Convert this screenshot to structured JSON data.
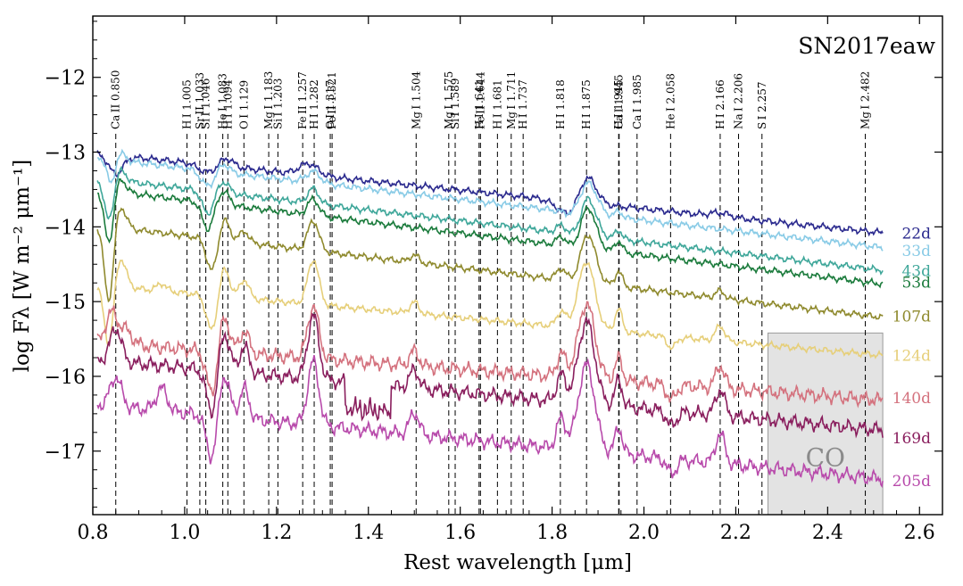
{
  "chart_data": {
    "type": "line",
    "title": "SN2017eaw",
    "xlabel": "Rest wavelength [μm]",
    "ylabel": "log Fλ [W m⁻² μm⁻¹]",
    "xlim": [
      0.8,
      2.65
    ],
    "ylim": [
      -17.85,
      -11.18
    ],
    "xticks": [
      0.8,
      1.0,
      1.2,
      1.4,
      1.6,
      1.8,
      2.0,
      2.2,
      2.4,
      2.6
    ],
    "xtick_labels": [
      "0.8",
      "1.0",
      "1.2",
      "1.4",
      "1.6",
      "1.8",
      "2.0",
      "2.2",
      "2.4",
      "2.6"
    ],
    "yticks": [
      -12,
      -13,
      -14,
      -15,
      -16,
      -17
    ],
    "ytick_labels": [
      "−12",
      "−13",
      "−14",
      "−15",
      "−16",
      "−17"
    ],
    "shaded_region": {
      "label": "CO",
      "x0": 2.27,
      "x1": 2.52,
      "y0": -17.85,
      "y1": -15.42,
      "color": "#e3e3e3"
    },
    "line_ids": [
      {
        "label": "Ca II 0.850",
        "x": 0.85
      },
      {
        "label": "H I 1.005",
        "x": 1.005
      },
      {
        "label": "Sr II 1.033",
        "x": 1.033
      },
      {
        "label": "Si I 1.046",
        "x": 1.046
      },
      {
        "label": "He I 1.083",
        "x": 1.083
      },
      {
        "label": "H I 1.094",
        "x": 1.094
      },
      {
        "label": "O I 1.129",
        "x": 1.129
      },
      {
        "label": "Mg I 1.183",
        "x": 1.183
      },
      {
        "label": "Si I 1.203",
        "x": 1.203
      },
      {
        "label": "Fe II 1.257",
        "x": 1.257
      },
      {
        "label": "H I 1.282",
        "x": 1.282
      },
      {
        "label": "O I 1.317",
        "x": 1.317
      },
      {
        "label": "Fe II 1.321",
        "x": 1.321
      },
      {
        "label": "Mg I 1.504",
        "x": 1.504
      },
      {
        "label": "Mg I 1.575",
        "x": 1.575
      },
      {
        "label": "Si I 1.589",
        "x": 1.589
      },
      {
        "label": "H I 1.641",
        "x": 1.641
      },
      {
        "label": "Fe II 1.644",
        "x": 1.644
      },
      {
        "label": "H I 1.681",
        "x": 1.681
      },
      {
        "label": "Mg I 1.711",
        "x": 1.711
      },
      {
        "label": "H I 1.737",
        "x": 1.737
      },
      {
        "label": "H I 1.818",
        "x": 1.818
      },
      {
        "label": "H I 1.875",
        "x": 1.875
      },
      {
        "label": "H I 1.945",
        "x": 1.945
      },
      {
        "label": "Ca I 1.945",
        "x": 1.946
      },
      {
        "label": "Ca I 1.985",
        "x": 1.985
      },
      {
        "label": "He I 2.058",
        "x": 2.058
      },
      {
        "label": "H I 2.166",
        "x": 2.166
      },
      {
        "label": "Na I 2.206",
        "x": 2.206
      },
      {
        "label": "S I 2.257",
        "x": 2.257
      },
      {
        "label": "Mg I 2.482",
        "x": 2.482
      }
    ],
    "series": [
      {
        "name": "22d",
        "color": "#2b2a8e",
        "base": -13.02,
        "slope": -0.62,
        "x_start": 0.81,
        "x_end": 2.52,
        "features": [
          [
            0.85,
            -0.25,
            0.015
          ],
          [
            1.05,
            -0.1,
            0.02
          ],
          [
            1.09,
            0.12,
            0.015
          ],
          [
            1.27,
            0.15,
            0.02
          ],
          [
            1.85,
            -0.25,
            0.03
          ],
          [
            1.875,
            0.5,
            0.02
          ],
          [
            2.166,
            0.05,
            0.02
          ]
        ]
      },
      {
        "name": "33d",
        "color": "#89cbe6",
        "base": -13.08,
        "slope": -0.7,
        "x_start": 0.81,
        "x_end": 2.52,
        "features": [
          [
            0.84,
            -0.35,
            0.008
          ],
          [
            0.86,
            0.1,
            0.012
          ],
          [
            1.05,
            -0.2,
            0.015
          ],
          [
            1.085,
            0.12,
            0.012
          ],
          [
            1.28,
            0.15,
            0.015
          ],
          [
            1.86,
            -0.2,
            0.02
          ],
          [
            1.875,
            0.55,
            0.02
          ],
          [
            1.945,
            0.08,
            0.008
          ]
        ]
      },
      {
        "name": "43d",
        "color": "#3fa79a",
        "base": -13.35,
        "slope": -0.72,
        "x_start": 0.81,
        "x_end": 2.52,
        "features": [
          [
            0.835,
            -0.55,
            0.01
          ],
          [
            0.86,
            0.15,
            0.012
          ],
          [
            1.05,
            -0.3,
            0.012
          ],
          [
            1.085,
            0.15,
            0.012
          ],
          [
            1.28,
            0.2,
            0.012
          ],
          [
            1.82,
            0.1,
            0.01
          ],
          [
            1.86,
            -0.2,
            0.015
          ],
          [
            1.875,
            0.6,
            0.018
          ],
          [
            1.945,
            0.12,
            0.008
          ]
        ]
      },
      {
        "name": "53d",
        "color": "#1b7b3c",
        "base": -13.5,
        "slope": -0.74,
        "x_start": 0.81,
        "x_end": 2.52,
        "features": [
          [
            0.835,
            -0.7,
            0.01
          ],
          [
            0.86,
            0.18,
            0.012
          ],
          [
            1.05,
            -0.35,
            0.012
          ],
          [
            1.085,
            0.18,
            0.012
          ],
          [
            1.28,
            0.22,
            0.012
          ],
          [
            1.82,
            0.12,
            0.01
          ],
          [
            1.86,
            -0.2,
            0.015
          ],
          [
            1.875,
            0.65,
            0.018
          ],
          [
            1.945,
            0.15,
            0.008
          ]
        ]
      },
      {
        "name": "107d",
        "color": "#8f8a2e",
        "base": -13.98,
        "slope": -0.72,
        "x_start": 0.81,
        "x_end": 2.52,
        "features": [
          [
            0.835,
            -1.0,
            0.01
          ],
          [
            0.86,
            0.3,
            0.012
          ],
          [
            1.06,
            -0.45,
            0.012
          ],
          [
            1.085,
            0.3,
            0.012
          ],
          [
            1.13,
            0.15,
            0.01
          ],
          [
            1.28,
            0.4,
            0.012
          ],
          [
            1.5,
            0.1,
            0.01
          ],
          [
            1.82,
            0.15,
            0.01
          ],
          [
            1.86,
            -0.2,
            0.015
          ],
          [
            1.875,
            0.75,
            0.018
          ],
          [
            1.945,
            0.2,
            0.008
          ],
          [
            2.166,
            0.1,
            0.01
          ]
        ]
      },
      {
        "name": "124d",
        "color": "#e6cf7a",
        "base": -14.78,
        "slope": -0.55,
        "x_start": 0.81,
        "x_end": 2.52,
        "features": [
          [
            0.835,
            -0.8,
            0.01
          ],
          [
            0.86,
            0.4,
            0.012
          ],
          [
            0.95,
            0.1,
            0.01
          ],
          [
            1.06,
            -0.5,
            0.012
          ],
          [
            1.085,
            0.4,
            0.012
          ],
          [
            1.13,
            0.25,
            0.01
          ],
          [
            1.28,
            0.6,
            0.012
          ],
          [
            1.5,
            0.15,
            0.01
          ],
          [
            1.82,
            0.2,
            0.01
          ],
          [
            1.875,
            0.9,
            0.018
          ],
          [
            1.945,
            0.3,
            0.008
          ],
          [
            2.06,
            -0.15,
            0.01
          ],
          [
            2.166,
            0.2,
            0.01
          ]
        ]
      },
      {
        "name": "140d",
        "color": "#d4727e",
        "base": -15.55,
        "slope": -0.45,
        "x_start": 0.81,
        "x_end": 2.52,
        "features": [
          [
            0.84,
            0.4,
            0.012
          ],
          [
            0.87,
            0.2,
            0.015
          ],
          [
            1.06,
            -0.6,
            0.012
          ],
          [
            1.085,
            0.5,
            0.012
          ],
          [
            1.13,
            0.3,
            0.01
          ],
          [
            1.28,
            0.7,
            0.012
          ],
          [
            1.5,
            0.2,
            0.01
          ],
          [
            1.82,
            0.3,
            0.01
          ],
          [
            1.875,
            1.0,
            0.018
          ],
          [
            1.945,
            0.3,
            0.008
          ],
          [
            2.06,
            -0.2,
            0.01
          ],
          [
            2.166,
            0.3,
            0.01
          ]
        ]
      },
      {
        "name": "169d",
        "color": "#8a1f5e",
        "base": -15.78,
        "slope": -0.55,
        "x_start": 0.81,
        "x_end": 2.52,
        "features": [
          [
            0.85,
            0.45,
            0.012
          ],
          [
            1.06,
            -0.6,
            0.012
          ],
          [
            1.085,
            0.55,
            0.012
          ],
          [
            1.13,
            0.35,
            0.01
          ],
          [
            1.28,
            0.85,
            0.012
          ],
          [
            1.5,
            0.25,
            0.01
          ],
          [
            1.82,
            0.35,
            0.01
          ],
          [
            1.875,
            1.1,
            0.018
          ],
          [
            1.945,
            0.35,
            0.008
          ],
          [
            2.06,
            -0.2,
            0.01
          ],
          [
            2.166,
            0.35,
            0.01
          ]
        ]
      },
      {
        "name": "205d",
        "color": "#b84aab",
        "base": -16.38,
        "slope": -0.58,
        "x_start": 0.81,
        "x_end": 2.52,
        "features": [
          [
            0.85,
            0.4,
            0.012
          ],
          [
            0.95,
            0.3,
            0.012
          ],
          [
            1.06,
            -0.6,
            0.012
          ],
          [
            1.085,
            0.6,
            0.012
          ],
          [
            1.13,
            0.4,
            0.01
          ],
          [
            1.28,
            0.85,
            0.012
          ],
          [
            1.5,
            0.3,
            0.01
          ],
          [
            1.82,
            0.4,
            0.01
          ],
          [
            1.875,
            1.15,
            0.018
          ],
          [
            1.945,
            0.35,
            0.008
          ],
          [
            2.06,
            -0.2,
            0.01
          ],
          [
            2.166,
            0.4,
            0.01
          ]
        ]
      }
    ],
    "legend": "right"
  }
}
